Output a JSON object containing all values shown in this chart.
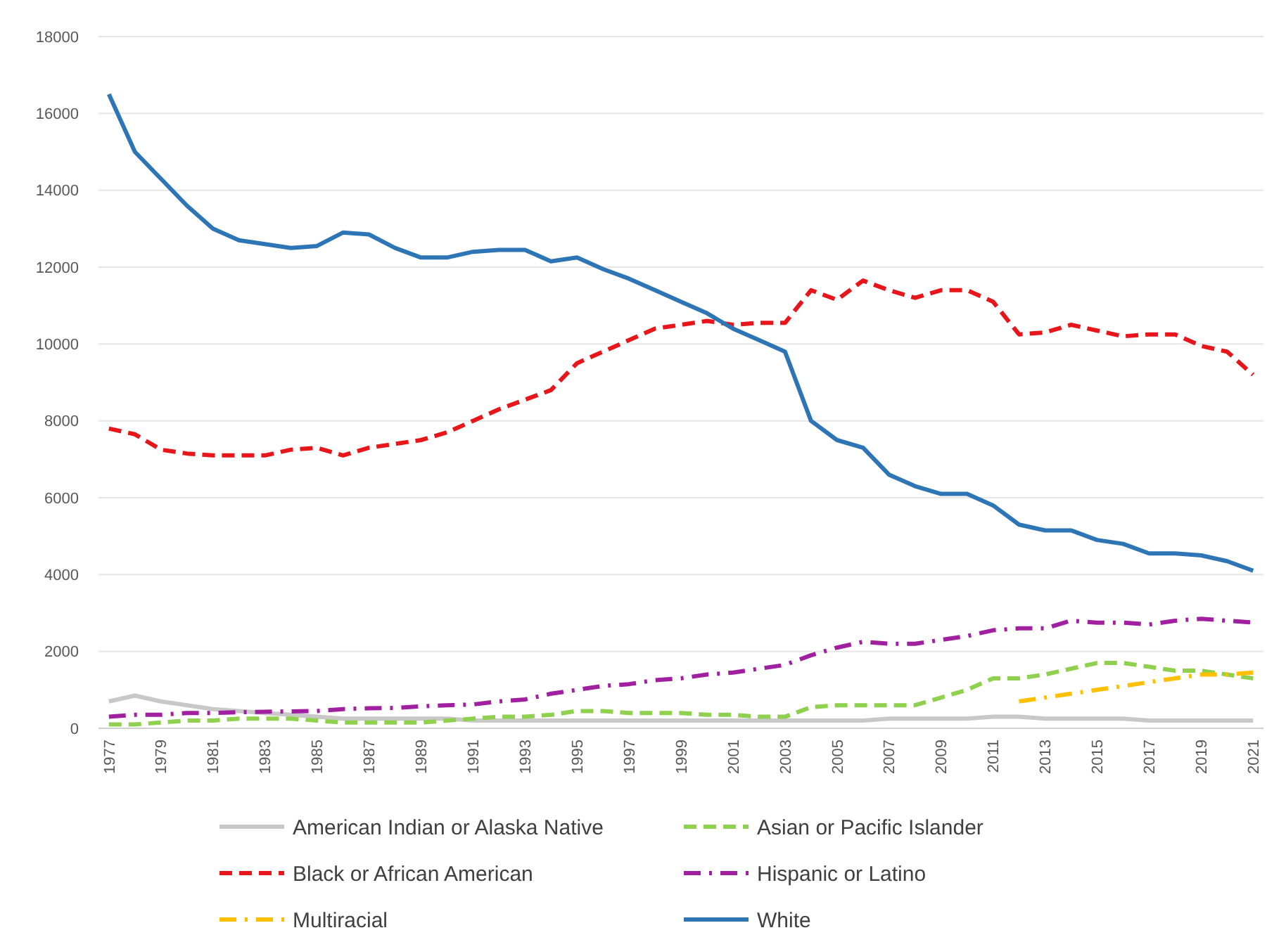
{
  "chart_data": {
    "type": "line",
    "x": [
      1977,
      1978,
      1979,
      1980,
      1981,
      1982,
      1983,
      1984,
      1985,
      1986,
      1987,
      1988,
      1989,
      1990,
      1991,
      1992,
      1993,
      1994,
      1995,
      1996,
      1997,
      1998,
      1999,
      2000,
      2001,
      2002,
      2003,
      2004,
      2005,
      2006,
      2007,
      2008,
      2009,
      2010,
      2011,
      2012,
      2013,
      2014,
      2015,
      2016,
      2017,
      2018,
      2019,
      2020,
      2021
    ],
    "xlim": [
      1976.6,
      2021.4
    ],
    "xticks": [
      1977,
      1979,
      1981,
      1983,
      1985,
      1987,
      1989,
      1991,
      1993,
      1995,
      1997,
      1999,
      2001,
      2003,
      2005,
      2007,
      2009,
      2011,
      2013,
      2015,
      2017,
      2019,
      2021
    ],
    "ylim": [
      0,
      18000
    ],
    "yticks": [
      0,
      2000,
      4000,
      6000,
      8000,
      10000,
      12000,
      14000,
      16000,
      18000
    ],
    "grid": "y",
    "legend": "bottom",
    "series": [
      {
        "name": "American Indian or Alaska Native",
        "color": "#c8c8c8",
        "line_style": "solid",
        "values": [
          700,
          850,
          700,
          600,
          500,
          450,
          400,
          350,
          300,
          250,
          250,
          250,
          250,
          250,
          200,
          200,
          200,
          200,
          200,
          200,
          200,
          200,
          200,
          200,
          200,
          200,
          200,
          200,
          200,
          200,
          250,
          250,
          250,
          250,
          300,
          300,
          250,
          250,
          250,
          250,
          200,
          200,
          200,
          200,
          200
        ]
      },
      {
        "name": "Asian or Pacific Islander",
        "color": "#8fd14f",
        "line_style": "dashed",
        "values": [
          100,
          100,
          150,
          200,
          200,
          250,
          250,
          250,
          200,
          150,
          150,
          150,
          150,
          200,
          250,
          300,
          300,
          350,
          450,
          450,
          400,
          400,
          400,
          350,
          350,
          300,
          300,
          550,
          600,
          600,
          600,
          600,
          800,
          1000,
          1300,
          1300,
          1400,
          1550,
          1700,
          1700,
          1600,
          1500,
          1500,
          1400,
          1300
        ]
      },
      {
        "name": "Black or African American",
        "color": "#e8161b",
        "line_style": "dashed",
        "values": [
          7800,
          7650,
          7250,
          7150,
          7100,
          7100,
          7100,
          7250,
          7300,
          7100,
          7300,
          7400,
          7500,
          7700,
          8000,
          8300,
          8550,
          8800,
          9500,
          9800,
          10100,
          10400,
          10500,
          10600,
          10500,
          10550,
          10550,
          11400,
          11150,
          11650,
          11400,
          11200,
          11400,
          11400,
          11100,
          10250,
          10300,
          10500,
          10350,
          10200,
          10250,
          10250,
          9950,
          9800,
          9200
        ]
      },
      {
        "name": "Hispanic or Latino",
        "color": "#a020a0",
        "line_style": "dashdot",
        "values": [
          300,
          350,
          350,
          400,
          400,
          420,
          430,
          440,
          450,
          500,
          520,
          530,
          570,
          600,
          620,
          700,
          750,
          900,
          1000,
          1100,
          1150,
          1250,
          1300,
          1400,
          1450,
          1550,
          1650,
          1900,
          2100,
          2250,
          2200,
          2200,
          2300,
          2400,
          2550,
          2600,
          2600,
          2800,
          2750,
          2750,
          2700,
          2800,
          2850,
          2800,
          2750
        ]
      },
      {
        "name": "Multiracial",
        "color": "#ffc000",
        "line_style": "dashdot",
        "values": [
          null,
          null,
          null,
          null,
          null,
          null,
          null,
          null,
          null,
          null,
          null,
          null,
          null,
          null,
          null,
          null,
          null,
          null,
          null,
          null,
          null,
          null,
          null,
          null,
          null,
          null,
          null,
          null,
          null,
          null,
          null,
          null,
          null,
          null,
          null,
          700,
          800,
          900,
          1000,
          1100,
          1200,
          1300,
          1400,
          1400,
          1450
        ]
      },
      {
        "name": "White",
        "color": "#2e75b6",
        "line_style": "solid",
        "values": [
          16500,
          15000,
          14300,
          13600,
          13000,
          12700,
          12600,
          12500,
          12550,
          12900,
          12850,
          12500,
          12250,
          12250,
          12400,
          12450,
          12450,
          12150,
          12250,
          11950,
          11700,
          11400,
          11100,
          10800,
          10400,
          10100,
          9800,
          8000,
          7500,
          7300,
          6600,
          6300,
          6100,
          6100,
          5800,
          5300,
          5150,
          5150,
          4900,
          4800,
          4550,
          4550,
          4500,
          4350,
          4100
        ]
      }
    ]
  }
}
